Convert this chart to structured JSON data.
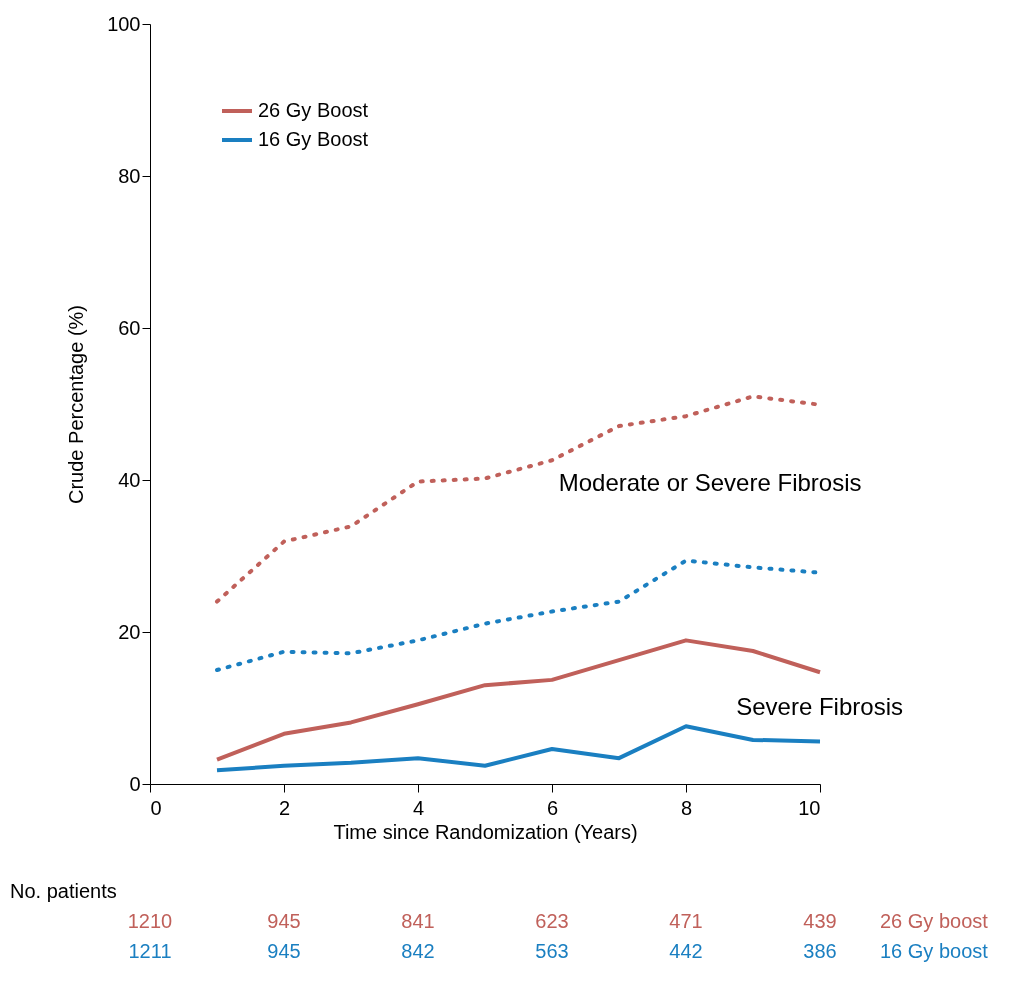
{
  "chart_data": {
    "type": "line",
    "xlabel": "Time since Randomization (Years)",
    "ylabel": "Crude Percentage (%)",
    "x": [
      1,
      2,
      3,
      4,
      5,
      6,
      7,
      8,
      9,
      10
    ],
    "series": [
      {
        "name": "26 Gy Boost",
        "color": "#c0605a",
        "line_style": "solid",
        "values": [
          3.2,
          6.6,
          8.1,
          10.5,
          13.0,
          13.7,
          16.3,
          18.9,
          17.5,
          14.7
        ]
      },
      {
        "name": "16 Gy Boost",
        "color": "#1a7fc1",
        "line_style": "solid",
        "values": [
          1.8,
          2.4,
          2.8,
          3.4,
          2.4,
          4.6,
          3.4,
          7.6,
          5.8,
          5.6
        ]
      },
      {
        "color": "#c0605a",
        "line_style": "dotted",
        "values": [
          24.0,
          31.9,
          33.9,
          39.8,
          40.2,
          42.6,
          47.1,
          48.4,
          51.0,
          49.9
        ]
      },
      {
        "color": "#1a7fc1",
        "line_style": "dotted",
        "values": [
          15.0,
          17.4,
          17.2,
          18.9,
          21.1,
          22.7,
          24.0,
          29.4,
          28.5,
          27.8
        ]
      }
    ],
    "xlim": [
      0,
      10
    ],
    "xticks": [
      0,
      2,
      4,
      6,
      8,
      10
    ],
    "ylim": [
      0,
      100
    ],
    "yticks": [
      0,
      20,
      40,
      60,
      80,
      100
    ],
    "grid": false,
    "legend": "top left",
    "marker": "none",
    "annotations": [
      "Moderate or Severe Fibrosis",
      "Severe Fibrosis",
      "No. patients",
      "1210",
      "945",
      "841",
      "623",
      "471",
      "439",
      "26 Gy boost",
      "1211",
      "945",
      "842",
      "563",
      "442",
      "386",
      "16 Gy boost"
    ]
  }
}
